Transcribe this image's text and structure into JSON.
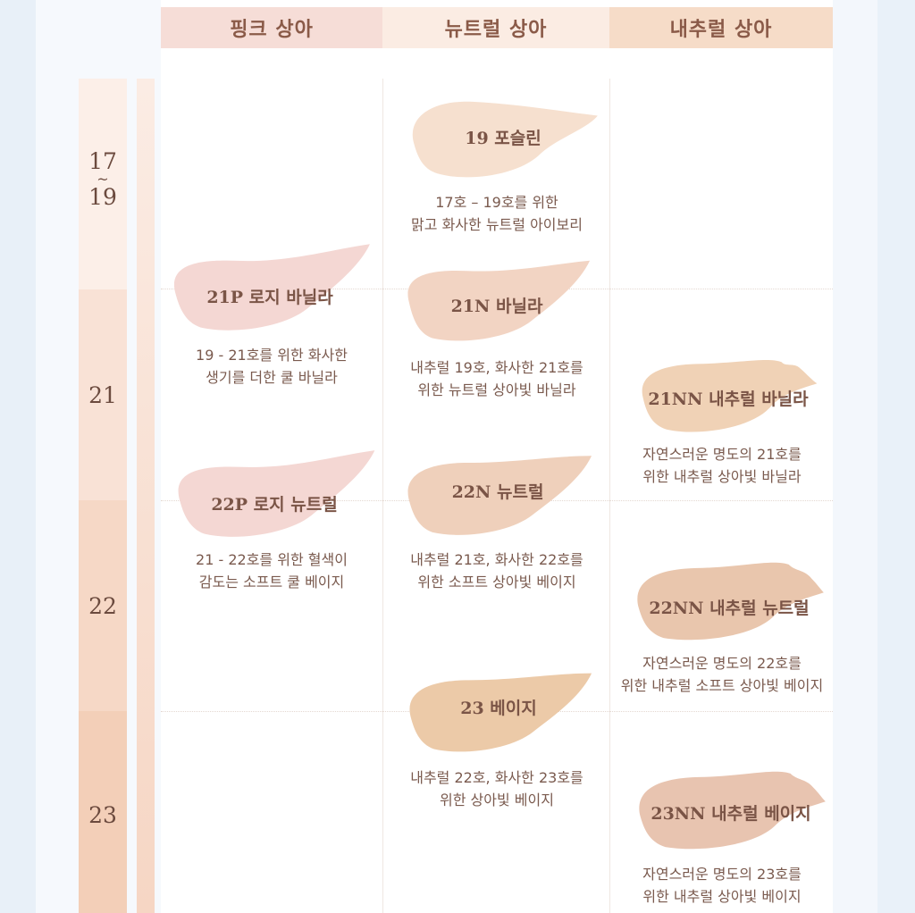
{
  "headers": [
    "핑크 상아",
    "뉴트럴 상아",
    "내추럴 상아"
  ],
  "scale": [
    {
      "label_top": "17",
      "label_mid": "~",
      "label_bottom": "19"
    },
    {
      "label": "21"
    },
    {
      "label": "22"
    },
    {
      "label": "23"
    }
  ],
  "colors": {
    "pink_swatch": "#f4d7d3",
    "neutral_19": "#f6e0cf",
    "neutral_21": "#f2d4c3",
    "neutral_22": "#efd0bb",
    "neutral_23": "#eccaa8",
    "natural_21": "#f0d2b6",
    "natural_22": "#e9c6ad",
    "natural_23": "#e8c4b0"
  },
  "shades": {
    "n19": {
      "label": "19 포슬린",
      "desc1": "17호 – 19호를 위한",
      "desc2": "맑고 화사한 뉴트럴 아이보리"
    },
    "p21": {
      "label": "21P 로지 바닐라",
      "desc1": "19 - 21호를 위한 화사한",
      "desc2": "생기를 더한 쿨 바닐라"
    },
    "n21": {
      "label": "21N 바닐라",
      "desc1": "내추럴 19호, 화사한 21호를",
      "desc2": "위한 뉴트럴 상아빛 바닐라"
    },
    "nn21": {
      "label": "21NN 내추럴 바닐라",
      "desc1": "자연스러운 명도의 21호를",
      "desc2": "위한 내추럴 상아빛 바닐라"
    },
    "p22": {
      "label": "22P 로지 뉴트럴",
      "desc1": "21 - 22호를 위한 혈색이",
      "desc2": "감도는 소프트 쿨 베이지"
    },
    "n22": {
      "label": "22N 뉴트럴",
      "desc1": "내추럴 21호, 화사한 22호를",
      "desc2": "위한 소프트 상아빛 베이지"
    },
    "nn22": {
      "label": "22NN 내추럴 뉴트럴",
      "desc1": "자연스러운 명도의 22호를",
      "desc2": "위한 내추럴 소프트 상아빛 베이지"
    },
    "n23": {
      "label": "23 베이지",
      "desc1": "내추럴 22호, 화사한 23호를",
      "desc2": "위한 상아빛 베이지"
    },
    "nn23": {
      "label": "23NN 내추럴 베이지",
      "desc1": "자연스러운 명도의 23호를",
      "desc2": "위한 내추럴 상아빛 베이지"
    }
  }
}
